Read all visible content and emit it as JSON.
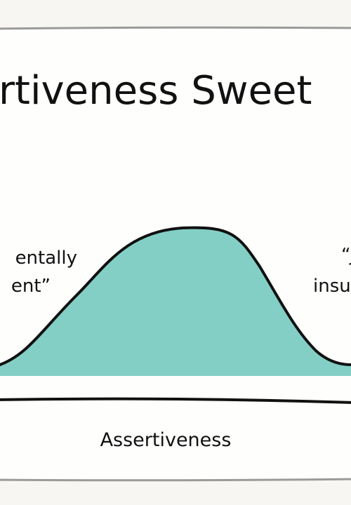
{
  "title": "rtiveness Sweet",
  "annotations": {
    "left": [
      "entally",
      "ent”"
    ],
    "right": [
      "“J",
      "insu"
    ]
  },
  "x_label": "Assertiveness"
}
